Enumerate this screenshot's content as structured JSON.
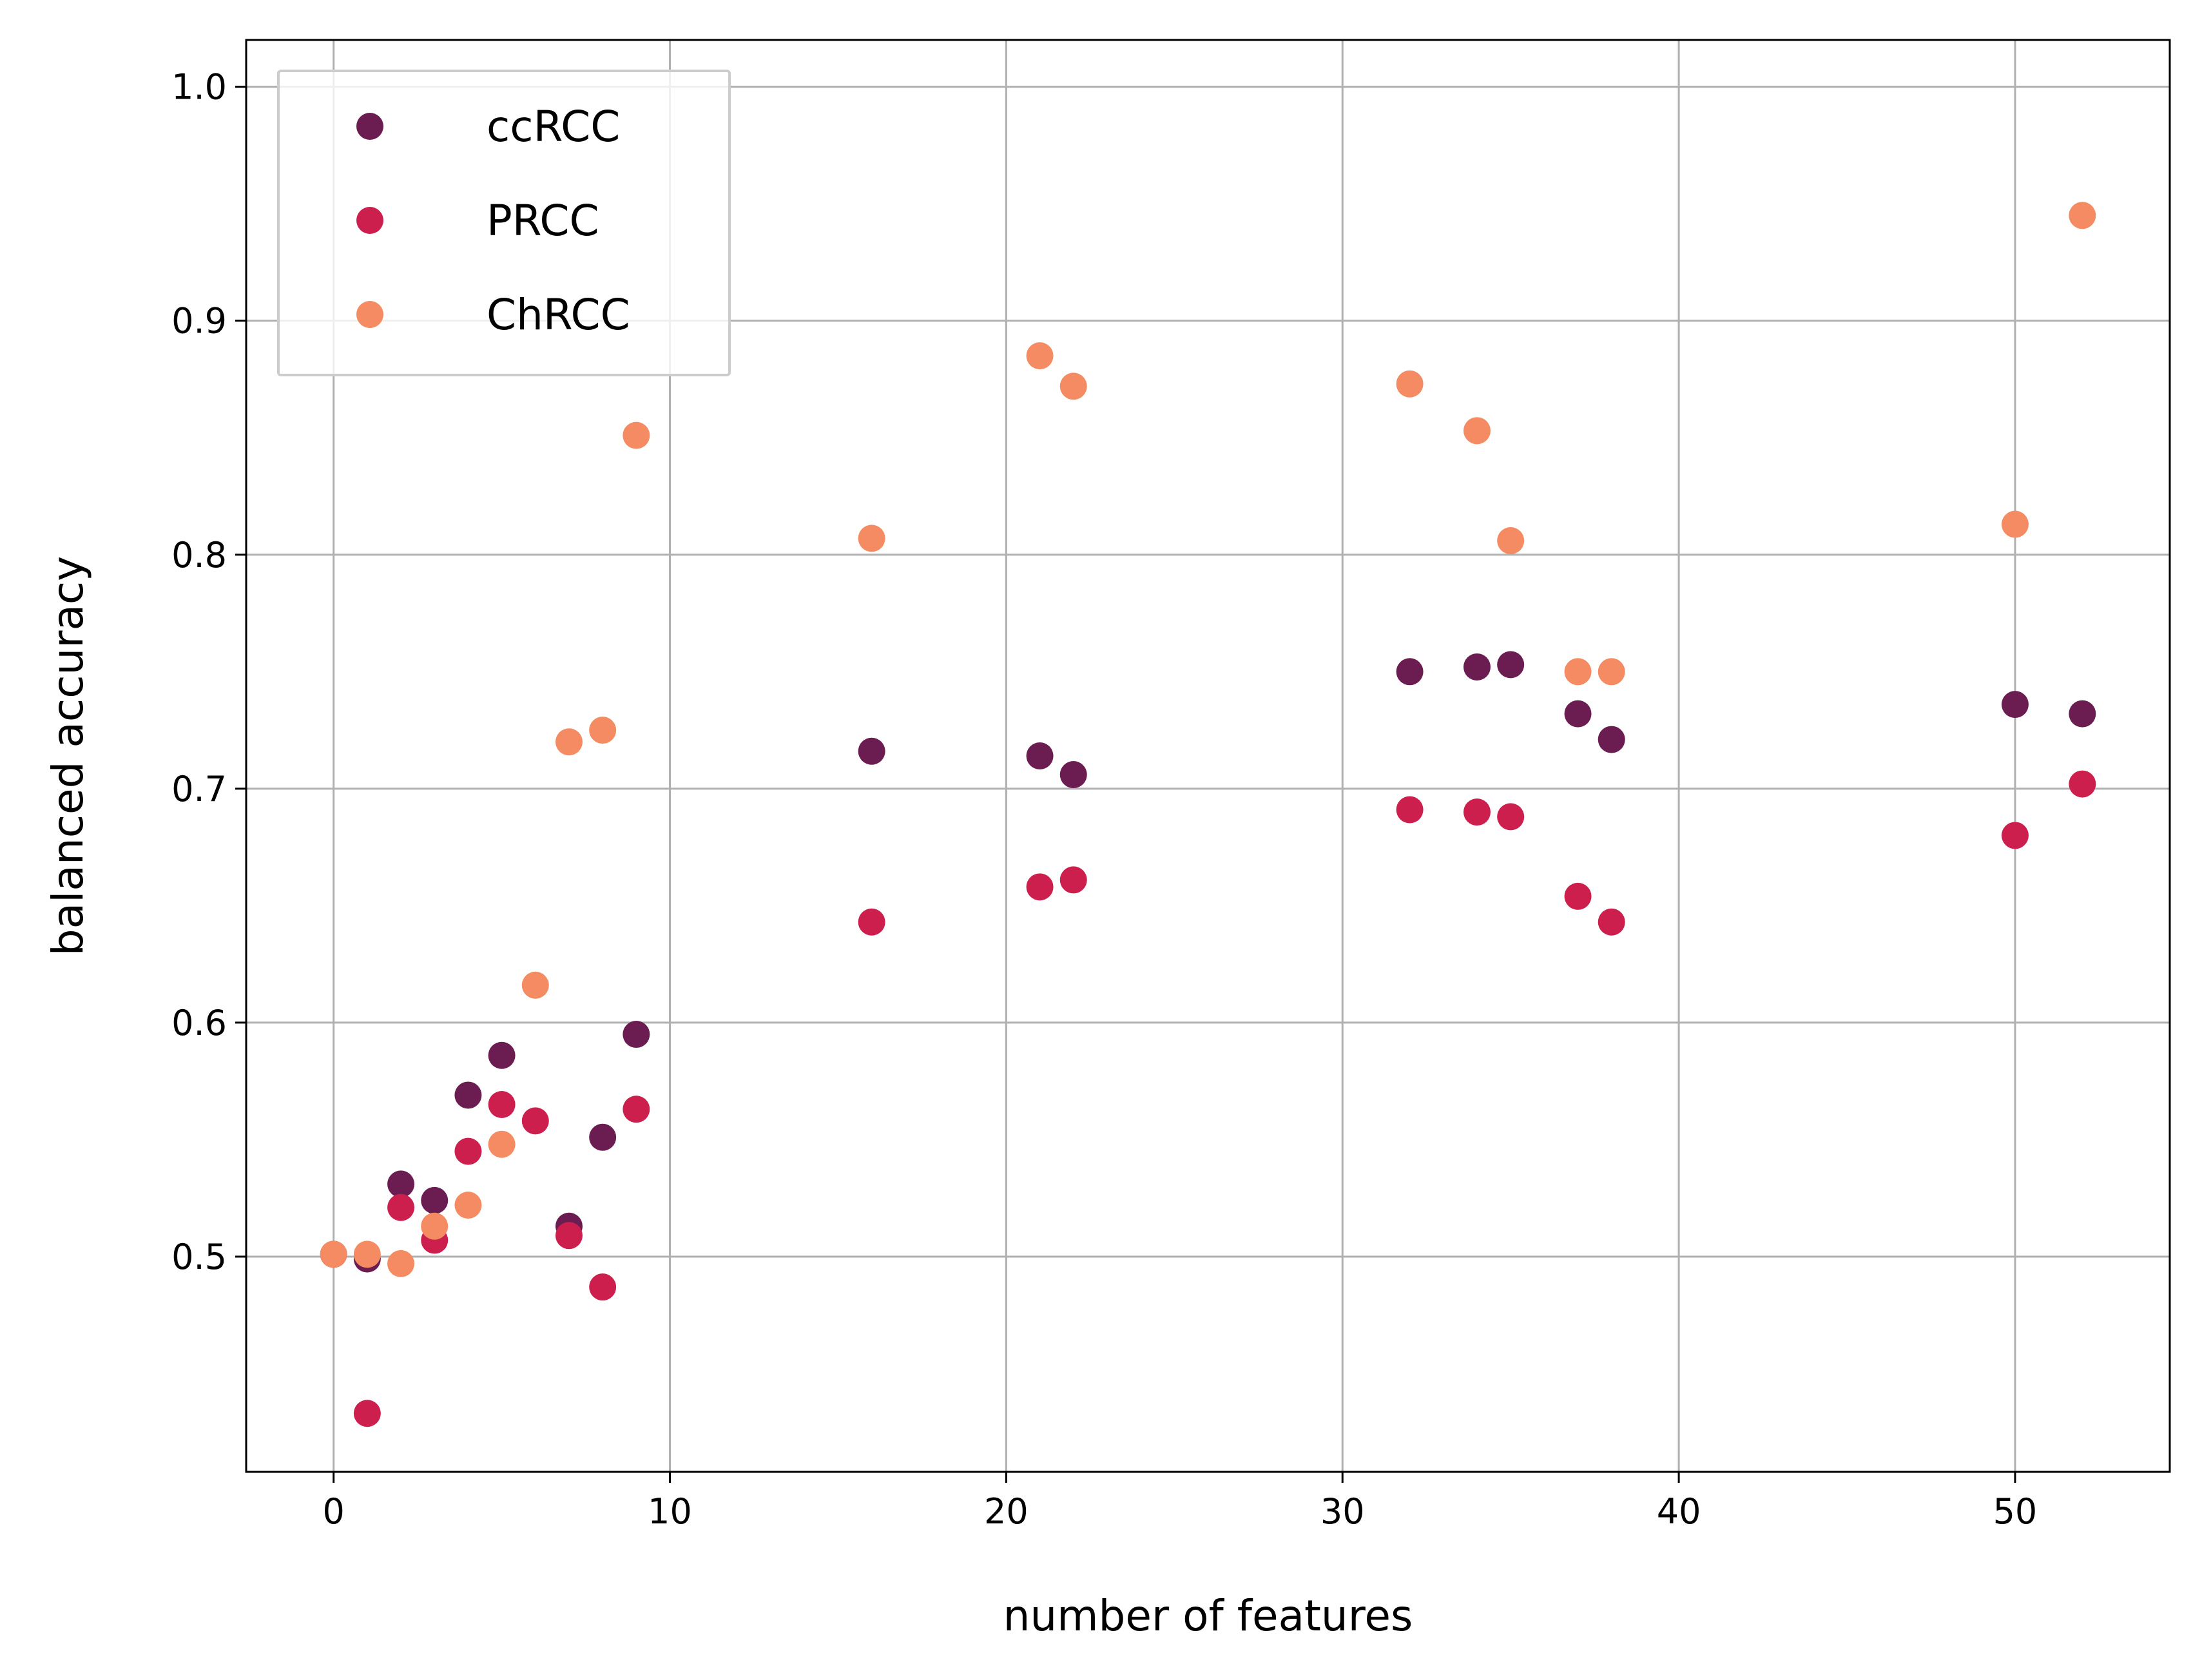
{
  "chart_data": {
    "type": "scatter",
    "title": "",
    "xlabel": "number of features",
    "ylabel": "balanced accuracy",
    "xlim": [
      -2.6,
      54.6
    ],
    "ylim": [
      0.408,
      1.02
    ],
    "xticks": [
      0,
      10,
      20,
      30,
      40,
      50
    ],
    "yticks": [
      0.5,
      0.6,
      0.7,
      0.8,
      0.9,
      1.0
    ],
    "xtick_labels": [
      "0",
      "10",
      "20",
      "30",
      "40",
      "50"
    ],
    "ytick_labels": [
      "0.5",
      "0.6",
      "0.7",
      "0.8",
      "0.9",
      "1.0"
    ],
    "grid": true,
    "legend_position": "top-left",
    "series": [
      {
        "name": "ccRCC",
        "color": "#6b1d51",
        "points": [
          [
            0,
            0.501
          ],
          [
            1,
            0.499
          ],
          [
            2,
            0.531
          ],
          [
            3,
            0.524
          ],
          [
            4,
            0.569
          ],
          [
            5,
            0.586
          ],
          [
            7,
            0.513
          ],
          [
            8,
            0.551
          ],
          [
            9,
            0.595
          ],
          [
            16,
            0.716
          ],
          [
            21,
            0.714
          ],
          [
            22,
            0.706
          ],
          [
            32,
            0.75
          ],
          [
            34,
            0.752
          ],
          [
            35,
            0.753
          ],
          [
            37,
            0.732
          ],
          [
            38,
            0.721
          ],
          [
            50,
            0.736
          ],
          [
            52,
            0.732
          ]
        ]
      },
      {
        "name": "PRCC",
        "color": "#cc1f4e",
        "points": [
          [
            1,
            0.433
          ],
          [
            2,
            0.521
          ],
          [
            3,
            0.507
          ],
          [
            4,
            0.545
          ],
          [
            5,
            0.565
          ],
          [
            6,
            0.558
          ],
          [
            7,
            0.509
          ],
          [
            8,
            0.487
          ],
          [
            9,
            0.563
          ],
          [
            16,
            0.643
          ],
          [
            21,
            0.658
          ],
          [
            22,
            0.661
          ],
          [
            32,
            0.691
          ],
          [
            34,
            0.69
          ],
          [
            35,
            0.688
          ],
          [
            37,
            0.654
          ],
          [
            38,
            0.643
          ],
          [
            50,
            0.68
          ],
          [
            52,
            0.702
          ]
        ]
      },
      {
        "name": "ChRCC",
        "color": "#f48b62",
        "points": [
          [
            0,
            0.501
          ],
          [
            1,
            0.501
          ],
          [
            2,
            0.497
          ],
          [
            3,
            0.513
          ],
          [
            4,
            0.522
          ],
          [
            5,
            0.548
          ],
          [
            6,
            0.616
          ],
          [
            7,
            0.72
          ],
          [
            8,
            0.725
          ],
          [
            9,
            0.851
          ],
          [
            16,
            0.807
          ],
          [
            21,
            0.885
          ],
          [
            22,
            0.872
          ],
          [
            32,
            0.873
          ],
          [
            34,
            0.853
          ],
          [
            35,
            0.806
          ],
          [
            37,
            0.75
          ],
          [
            38,
            0.75
          ],
          [
            50,
            0.813
          ],
          [
            52,
            0.945
          ]
        ]
      }
    ]
  }
}
